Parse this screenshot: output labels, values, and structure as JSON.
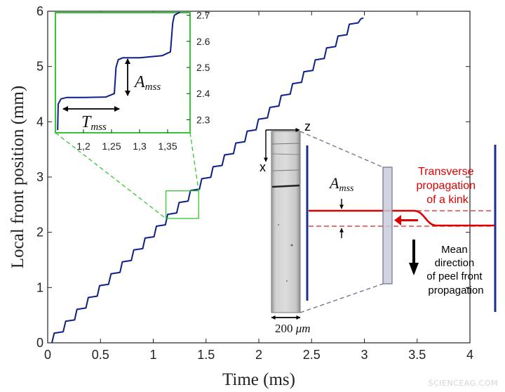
{
  "chart_data": [
    {
      "type": "line",
      "panel": "main",
      "xlabel": "Time (ms)",
      "ylabel": "Local front position (mm)",
      "xlim": [
        0,
        4
      ],
      "ylim": [
        0,
        6
      ],
      "x_ticks": [
        "0",
        "0.5",
        "1",
        "1.5",
        "2",
        "2.5",
        "3",
        "3.5",
        "4"
      ],
      "y_ticks": [
        "0",
        "1",
        "2",
        "3",
        "4",
        "5",
        "6"
      ],
      "grid": false,
      "line_color": "#0d1f8c",
      "series": [
        {
          "step_x_start": 0.04,
          "step_x_end": 2.99,
          "step_duration_ms": 0.1075,
          "step_height_mm": 0.215,
          "x": [
            0.04,
            0.062,
            0.147,
            0.17,
            0.255,
            0.277,
            0.362,
            0.385,
            0.47,
            0.492,
            0.577,
            0.6,
            0.685,
            0.707,
            0.792,
            0.815,
            0.9,
            0.922,
            1.007,
            1.03,
            1.115,
            1.137,
            1.222,
            1.245,
            1.33,
            1.352,
            1.437,
            1.46,
            1.545,
            1.567,
            1.652,
            1.675,
            1.76,
            1.782,
            1.867,
            1.89,
            1.975,
            1.997,
            2.082,
            2.105,
            2.19,
            2.212,
            2.297,
            2.32,
            2.405,
            2.427,
            2.512,
            2.535,
            2.62,
            2.642,
            2.727,
            2.75,
            2.835,
            2.857,
            2.942,
            2.965,
            2.99
          ],
          "y": [
            0.0,
            0.175,
            0.2,
            0.39,
            0.415,
            0.605,
            0.63,
            0.82,
            0.845,
            1.035,
            1.06,
            1.25,
            1.275,
            1.465,
            1.49,
            1.68,
            1.705,
            1.895,
            1.92,
            2.11,
            2.135,
            2.325,
            2.35,
            2.54,
            2.565,
            2.755,
            2.78,
            2.97,
            2.995,
            3.185,
            3.21,
            3.4,
            3.425,
            3.615,
            3.64,
            3.83,
            3.855,
            4.045,
            4.07,
            4.26,
            4.285,
            4.475,
            4.5,
            4.69,
            4.715,
            4.905,
            4.93,
            5.12,
            5.145,
            5.335,
            5.36,
            5.55,
            5.575,
            5.765,
            5.79,
            5.86,
            5.88
          ]
        }
      ],
      "zoom_box": {
        "x": [
          1.12,
          1.43
        ],
        "y": [
          2.25,
          2.75
        ]
      }
    },
    {
      "type": "line",
      "panel": "inset",
      "xlim": [
        1.15,
        1.39
      ],
      "ylim": [
        2.25,
        2.71
      ],
      "x_ticks": [
        "1,2",
        "1,25",
        "1,3",
        "1,35"
      ],
      "x_tick_values": [
        1.2,
        1.25,
        1.3,
        1.35
      ],
      "y_ticks": [
        "2.3",
        "2.4",
        "2.5",
        "2.6",
        "2.7"
      ],
      "y_tick_values": [
        2.3,
        2.4,
        2.5,
        2.6,
        2.7
      ],
      "y_axis_side": "right",
      "box_color": "#35c535",
      "series": [
        {
          "x": [
            1.154,
            1.155,
            1.16,
            1.17,
            1.2,
            1.24,
            1.255,
            1.258,
            1.262,
            1.27,
            1.3,
            1.34,
            1.355,
            1.359,
            1.362,
            1.37,
            1.372
          ],
          "y": [
            2.26,
            2.36,
            2.38,
            2.385,
            2.385,
            2.387,
            2.4,
            2.5,
            2.53,
            2.537,
            2.537,
            2.545,
            2.56,
            2.67,
            2.7,
            2.71,
            2.71
          ]
        }
      ],
      "annotations": {
        "T_label": "T",
        "T_sub": "mss",
        "A_label": "A",
        "A_sub": "mss"
      }
    }
  ],
  "diagram": {
    "axis_z": "z",
    "axis_x": "x",
    "scale_bar_value": "200",
    "scale_bar_unit": "μm",
    "amplitude_label": "A",
    "amplitude_sub": "mss",
    "kink_text": [
      "Transverse",
      "propagation",
      "of a kink"
    ],
    "direction_text": [
      "Mean",
      "direction",
      "of peel front",
      "propagation"
    ],
    "kink_color": "#dd0000",
    "front_line_color": "#1d2f8c"
  },
  "watermark": "SCIENCEAG.COM"
}
